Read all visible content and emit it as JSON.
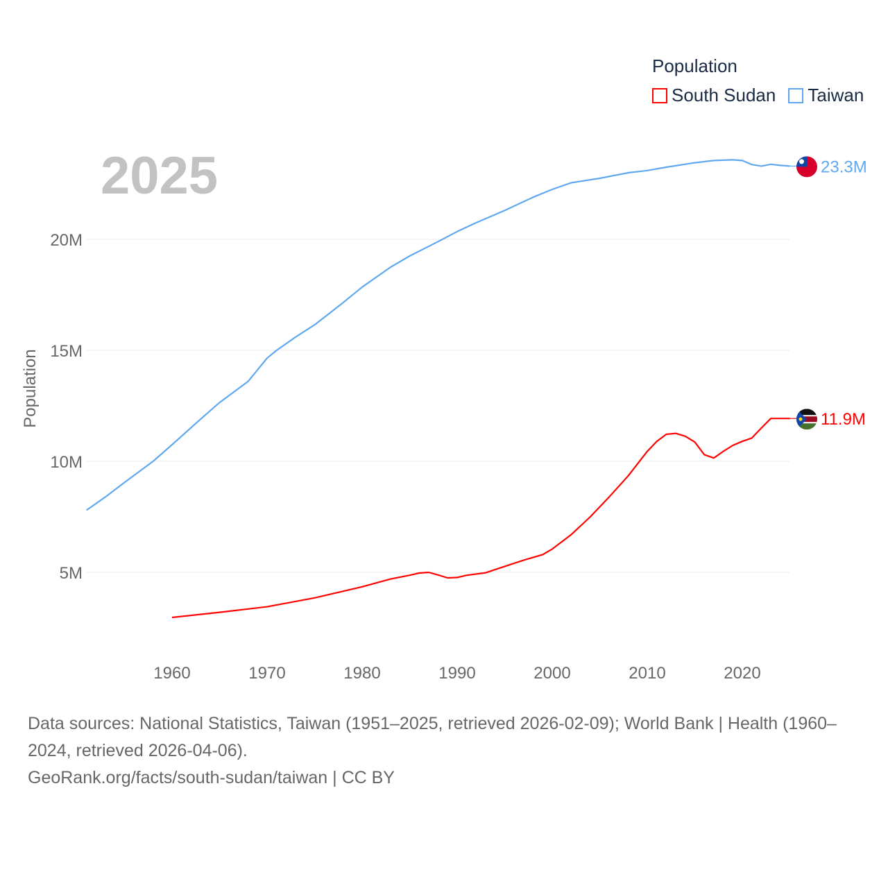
{
  "chart_data": {
    "type": "line",
    "title": "",
    "ylabel": "Population",
    "xlabel": "",
    "ylim": [
      0,
      24
    ],
    "xlim": [
      1951,
      2025
    ],
    "yticks": [
      {
        "v": 5,
        "label": "5M"
      },
      {
        "v": 10,
        "label": "10M"
      },
      {
        "v": 15,
        "label": "15M"
      },
      {
        "v": 20,
        "label": "20M"
      }
    ],
    "xticks": [
      1960,
      1970,
      1980,
      1990,
      2000,
      2010,
      2020
    ],
    "grid": true,
    "legend": {
      "title": "Population",
      "placement": "top-right"
    },
    "year_label": "2025",
    "series": [
      {
        "name": "South Sudan",
        "color": "#ff0000",
        "end_label": "11.9M",
        "x": [
          1960,
          1965,
          1970,
          1975,
          1980,
          1983,
          1985,
          1986,
          1987,
          1988,
          1989,
          1990,
          1991,
          1993,
          1995,
          1997,
          1999,
          2000,
          2002,
          2004,
          2006,
          2008,
          2009,
          2010,
          2011,
          2012,
          2013,
          2014,
          2015,
          2016,
          2017,
          2018,
          2019,
          2020,
          2021,
          2022,
          2023,
          2024,
          2025
        ],
        "values": [
          2.97,
          3.2,
          3.45,
          3.85,
          4.35,
          4.7,
          4.87,
          4.97,
          5.0,
          4.88,
          4.75,
          4.77,
          4.87,
          4.98,
          5.27,
          5.55,
          5.8,
          6.05,
          6.7,
          7.5,
          8.4,
          9.35,
          9.9,
          10.45,
          10.9,
          11.22,
          11.26,
          11.13,
          10.87,
          10.3,
          10.15,
          10.45,
          10.72,
          10.9,
          11.05,
          11.5,
          11.93,
          11.93,
          11.93
        ]
      },
      {
        "name": "Taiwan",
        "color": "#5fa8f0",
        "end_label": "23.3M",
        "x": [
          1951,
          1953,
          1955,
          1958,
          1960,
          1963,
          1965,
          1968,
          1970,
          1971,
          1973,
          1975,
          1978,
          1980,
          1983,
          1985,
          1988,
          1990,
          1992,
          1995,
          1998,
          2000,
          2002,
          2005,
          2008,
          2010,
          2012,
          2015,
          2017,
          2019,
          2020,
          2021,
          2022,
          2023,
          2024,
          2025
        ],
        "values": [
          7.8,
          8.4,
          9.05,
          10.0,
          10.75,
          11.9,
          12.65,
          13.6,
          14.65,
          15.0,
          15.6,
          16.15,
          17.15,
          17.85,
          18.75,
          19.25,
          19.9,
          20.35,
          20.75,
          21.3,
          21.9,
          22.25,
          22.55,
          22.75,
          23.0,
          23.1,
          23.25,
          23.45,
          23.55,
          23.58,
          23.55,
          23.37,
          23.3,
          23.38,
          23.33,
          23.3
        ]
      }
    ]
  },
  "footer": {
    "sources": "Data sources: National Statistics, Taiwan (1951–2025, retrieved 2026-02-09); World Bank | Health (1960–2024, retrieved 2026-04-06).",
    "credit": "GeoRank.org/facts/south-sudan/taiwan | CC BY"
  }
}
